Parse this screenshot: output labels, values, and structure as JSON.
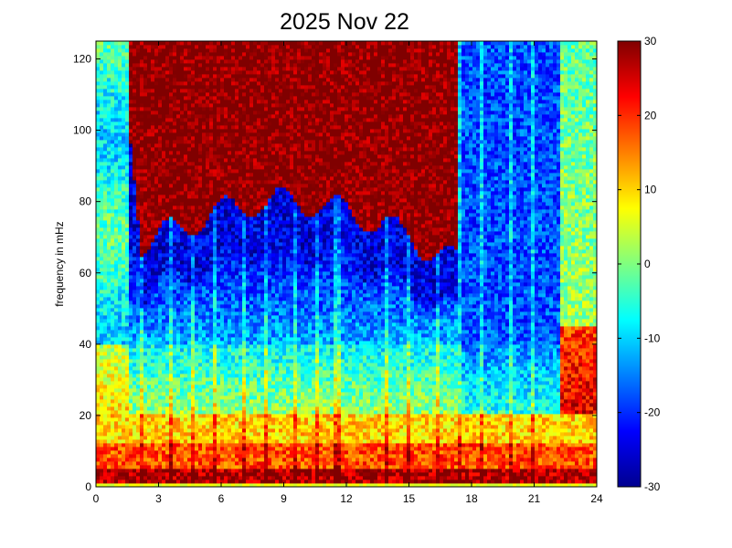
{
  "chart_data": {
    "type": "heatmap",
    "title": "2025 Nov 22",
    "xlabel": "",
    "ylabel": "frequency in mHz",
    "xlim": [
      0,
      24
    ],
    "ylim": [
      0,
      125
    ],
    "x_ticks": [
      0,
      3,
      6,
      9,
      12,
      15,
      18,
      21,
      24
    ],
    "y_ticks": [
      0,
      20,
      40,
      60,
      80,
      100,
      120
    ],
    "x_tick_labels": [
      "0",
      "3",
      "6",
      "9",
      "12",
      "15",
      "18",
      "21",
      "24"
    ],
    "y_tick_labels": [
      "0",
      "20",
      "40",
      "60",
      "80",
      "100",
      "120"
    ],
    "colorbar": {
      "range": [
        -30,
        30
      ],
      "ticks": [
        -30,
        -20,
        -10,
        0,
        10,
        20,
        30
      ],
      "tick_labels": [
        "-30",
        "-20",
        "-10",
        "0",
        "10",
        "20",
        "30"
      ],
      "colormap": "jet"
    },
    "grid": false,
    "z_approx_by_region": [
      {
        "hours": [
          0,
          1.5
        ],
        "freq": [
          0,
          125
        ],
        "value": -8
      },
      {
        "hours": [
          0,
          2
        ],
        "freq": [
          0,
          40
        ],
        "value": 10
      },
      {
        "hours": [
          1.5,
          17.5
        ],
        "freq": [
          60,
          125
        ],
        "value": 30
      },
      {
        "hours": [
          2,
          17.5
        ],
        "freq": [
          40,
          60
        ],
        "value": -22
      },
      {
        "hours": [
          2,
          17.5
        ],
        "freq": [
          20,
          40
        ],
        "value": -5
      },
      {
        "hours": [
          0,
          24
        ],
        "freq": [
          5,
          20
        ],
        "value": 12
      },
      {
        "hours": [
          0,
          24
        ],
        "freq": [
          1,
          5
        ],
        "value": 28
      },
      {
        "hours": [
          0,
          24
        ],
        "freq": [
          0,
          1
        ],
        "value": 5
      },
      {
        "hours": [
          17.5,
          22
        ],
        "freq": [
          20,
          125
        ],
        "value": -18
      },
      {
        "hours": [
          22,
          24
        ],
        "freq": [
          40,
          125
        ],
        "value": 0
      },
      {
        "hours": [
          22,
          24
        ],
        "freq": [
          0,
          40
        ],
        "value": 25
      }
    ]
  }
}
